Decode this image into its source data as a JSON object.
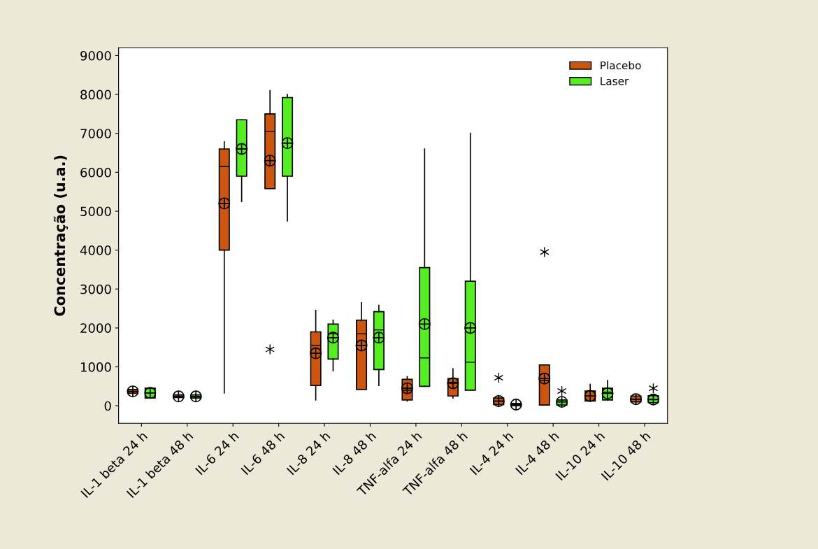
{
  "chart_data": {
    "type": "box",
    "ylabel": "Concentração (u.a.)",
    "categories": [
      "IL-1 beta 24 h",
      "IL-1 beta 48 h",
      "IL-6 24 h",
      "IL-6 48 h",
      "IL-8 24 h",
      "IL-8 48 h",
      "TNF-alfa 24 h",
      "TNF-alfa 48 h",
      "IL-4 24 h",
      "IL-4 48 h",
      "IL-10 24 h",
      "IL-10 48 h"
    ],
    "ylim": [
      -450,
      9200
    ],
    "yticks": [
      0,
      1000,
      2000,
      3000,
      4000,
      5000,
      6000,
      7000,
      8000,
      9000
    ],
    "grid": false,
    "legend": "top right",
    "series": [
      {
        "name": "Placebo",
        "color": "#cc5510",
        "boxes": [
          {
            "low": 320,
            "q1": 320,
            "median": 370,
            "q3": 420,
            "high": 420,
            "mean": 370
          },
          {
            "low": 210,
            "q1": 210,
            "median": 240,
            "q3": 280,
            "high": 280,
            "mean": 240
          },
          {
            "low": 330,
            "q1": 4000,
            "median": 6150,
            "q3": 6600,
            "high": 6780,
            "mean": 5200
          },
          {
            "low": 5580,
            "q1": 5580,
            "median": 7050,
            "q3": 7500,
            "high": 8100,
            "mean": 6300,
            "outliers": [
              1450
            ]
          },
          {
            "low": 150,
            "q1": 520,
            "median": 1550,
            "q3": 1900,
            "high": 2450,
            "mean": 1350
          },
          {
            "low": 420,
            "q1": 420,
            "median": 1850,
            "q3": 2200,
            "high": 2650,
            "mean": 1550
          },
          {
            "low": 120,
            "q1": 150,
            "median": 400,
            "q3": 680,
            "high": 750,
            "mean": 450
          },
          {
            "low": 200,
            "q1": 250,
            "median": 600,
            "q3": 700,
            "high": 950,
            "mean": 580
          },
          {
            "low": 30,
            "q1": 30,
            "median": 120,
            "q3": 200,
            "high": 200,
            "mean": 120,
            "outliers": [
              720
            ]
          },
          {
            "low": 20,
            "q1": 20,
            "median": 650,
            "q3": 1050,
            "high": 1050,
            "mean": 700,
            "outliers": [
              3950
            ]
          },
          {
            "low": 120,
            "q1": 120,
            "median": 250,
            "q3": 380,
            "high": 550,
            "mean": 250
          },
          {
            "low": 100,
            "q1": 100,
            "median": 170,
            "q3": 250,
            "high": 250,
            "mean": 170
          }
        ]
      },
      {
        "name": "Laser",
        "color": "#55ee22",
        "boxes": [
          {
            "low": 200,
            "q1": 200,
            "median": 330,
            "q3": 450,
            "high": 450,
            "mean": 330
          },
          {
            "low": 200,
            "q1": 200,
            "median": 240,
            "q3": 280,
            "high": 280,
            "mean": 240
          },
          {
            "low": 5250,
            "q1": 5900,
            "median": 6600,
            "q3": 7350,
            "high": 7350,
            "mean": 6600
          },
          {
            "low": 4750,
            "q1": 5900,
            "median": 6750,
            "q3": 7920,
            "high": 8000,
            "mean": 6750
          },
          {
            "low": 900,
            "q1": 1200,
            "median": 1850,
            "q3": 2100,
            "high": 2200,
            "mean": 1750
          },
          {
            "low": 520,
            "q1": 930,
            "median": 1950,
            "q3": 2420,
            "high": 2580,
            "mean": 1750
          },
          {
            "low": 500,
            "q1": 500,
            "median": 1230,
            "q3": 3550,
            "high": 6600,
            "mean": 2100
          },
          {
            "low": 400,
            "q1": 400,
            "median": 1120,
            "q3": 3200,
            "high": 7000,
            "mean": 2000
          },
          {
            "low": 0,
            "q1": 0,
            "median": 30,
            "q3": 60,
            "high": 60,
            "mean": 30
          },
          {
            "low": 20,
            "q1": 20,
            "median": 100,
            "q3": 150,
            "high": 150,
            "mean": 100,
            "outliers": [
              380
            ]
          },
          {
            "low": 150,
            "q1": 150,
            "median": 350,
            "q3": 450,
            "high": 650,
            "mean": 320
          },
          {
            "low": 80,
            "q1": 80,
            "median": 160,
            "q3": 260,
            "high": 260,
            "mean": 160,
            "outliers": [
              450
            ]
          }
        ]
      }
    ]
  }
}
